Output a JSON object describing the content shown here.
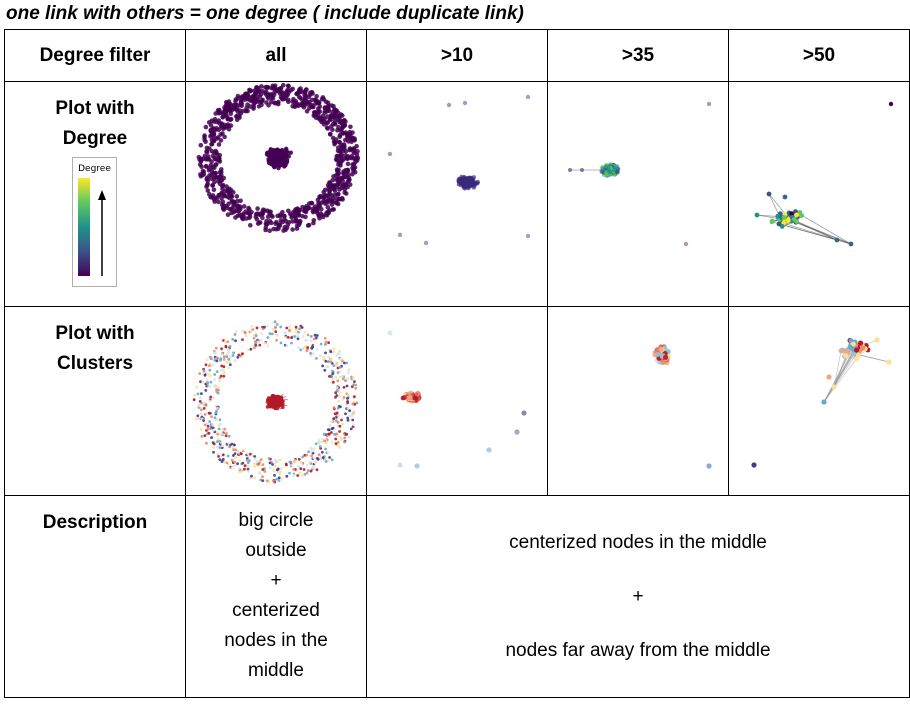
{
  "title": "one link with others = one degree ( include duplicate link)",
  "header": {
    "corner": "Degree filter",
    "columns": [
      "all",
      ">10",
      ">35",
      ">50"
    ]
  },
  "rows": {
    "degree_label": "Plot with Degree",
    "clusters_label": "Plot with Clusters",
    "description_label": "Description"
  },
  "legend": {
    "title": "Degree",
    "colormap": "viridis",
    "arrow": "up"
  },
  "description": {
    "all": [
      "big circle",
      "outside",
      "+",
      "centerized",
      "nodes in the",
      "middle"
    ],
    "others": [
      "centerized nodes in the middle",
      "+",
      "nodes far away from the middle"
    ]
  },
  "colors": {
    "degree_node": "#440154",
    "degree_mid": "#21918c",
    "degree_high": "#fde725",
    "cluster_red": "#b2182b",
    "cluster_orange": "#ef8a62",
    "cluster_yellow": "#fee090",
    "cluster_blue": "#67a9cf",
    "cluster_navy": "#3b3b8f"
  }
}
